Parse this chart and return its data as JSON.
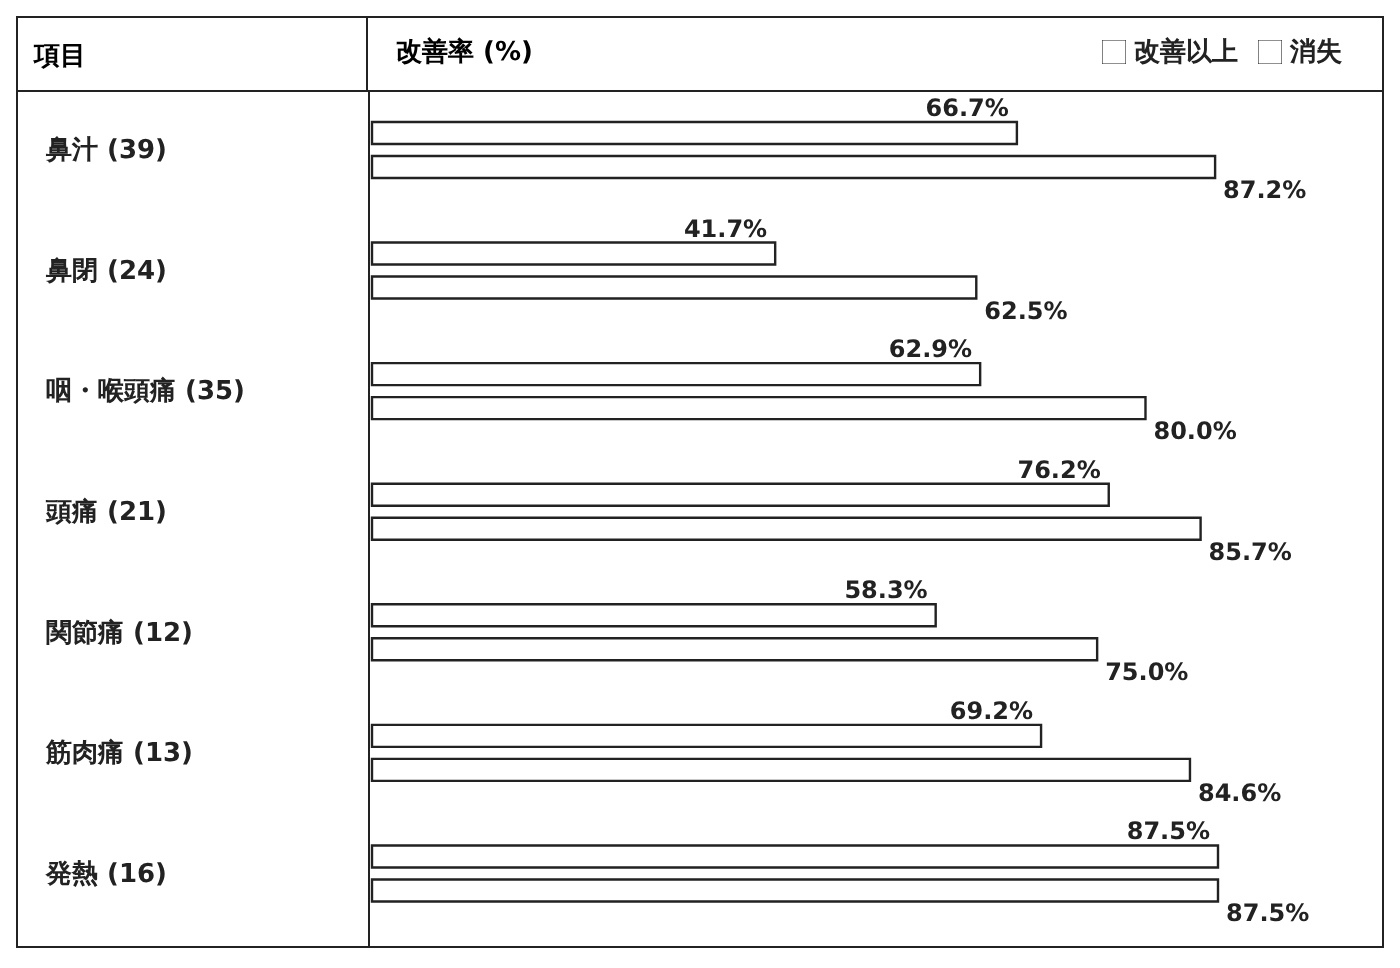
{
  "chart_data": {
    "type": "bar",
    "orientation": "horizontal",
    "xlabel": "改善率 (%)",
    "ylabel": "項目",
    "categories": [
      "鼻汁 (39)",
      "鼻閉 (24)",
      "咽・喉頭痛 (35)",
      "頭痛 (21)",
      "関節痛 (12)",
      "筋肉痛 (13)",
      "発熱 (16)"
    ],
    "series": [
      {
        "name": "消失",
        "color": "#ffffff",
        "values": [
          66.7,
          41.7,
          62.9,
          76.2,
          58.3,
          69.2,
          87.5
        ],
        "value_labels": [
          "66.7%",
          "41.7%",
          "62.9%",
          "76.2%",
          "58.3%",
          "69.2%",
          "87.5%"
        ]
      },
      {
        "name": "改善以上",
        "color": "#ffffff",
        "values": [
          87.2,
          62.5,
          80.0,
          85.7,
          75.0,
          84.6,
          87.5
        ],
        "value_labels": [
          "87.2%",
          "62.5%",
          "80.0%",
          "85.7%",
          "75.0%",
          "84.6%",
          "87.5%"
        ]
      }
    ],
    "legend": "top right"
  }
}
